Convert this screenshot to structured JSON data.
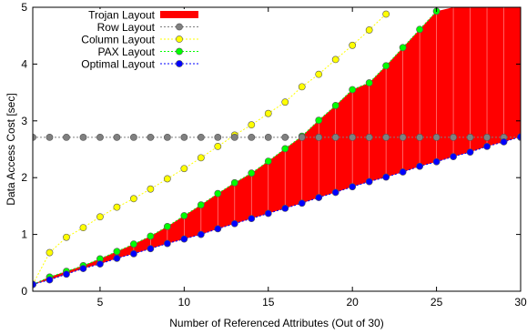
{
  "chart_data": {
    "type": "line",
    "title": "",
    "xlabel": "Number of Referenced Attributes (Out of 30)",
    "ylabel": "Data Access Cost [sec]",
    "xlim": [
      1,
      30
    ],
    "ylim": [
      0,
      5
    ],
    "xticks": [
      5,
      10,
      15,
      20,
      25,
      30
    ],
    "yticks": [
      0,
      1,
      2,
      3,
      4,
      5
    ],
    "grid": false,
    "legend": "top-left",
    "x": [
      1,
      2,
      3,
      4,
      5,
      6,
      7,
      8,
      9,
      10,
      11,
      12,
      13,
      14,
      15,
      16,
      17,
      18,
      19,
      20,
      21,
      22,
      23,
      24,
      25,
      26,
      27,
      28,
      29,
      30
    ],
    "series": [
      {
        "name": "Row Layout",
        "kind": "line",
        "color": "#808080",
        "values": [
          2.71,
          2.71,
          2.71,
          2.71,
          2.71,
          2.71,
          2.71,
          2.71,
          2.71,
          2.71,
          2.71,
          2.71,
          2.71,
          2.71,
          2.71,
          2.71,
          2.71,
          2.71,
          2.71,
          2.71,
          2.71,
          2.71,
          2.71,
          2.71,
          2.71,
          2.71,
          2.71,
          2.71,
          2.71,
          2.71
        ]
      },
      {
        "name": "Column Layout",
        "kind": "line",
        "color": "#ffff00",
        "values": [
          0.12,
          0.68,
          0.95,
          1.12,
          1.31,
          1.48,
          1.63,
          1.8,
          1.98,
          2.16,
          2.35,
          2.55,
          2.75,
          2.93,
          3.13,
          3.33,
          3.6,
          3.82,
          4.08,
          4.33,
          4.6,
          4.88,
          null,
          null,
          null,
          null,
          null,
          null,
          null,
          null
        ]
      },
      {
        "name": "PAX Layout",
        "kind": "line",
        "color": "#00ff00",
        "values": [
          0.12,
          0.25,
          0.35,
          0.45,
          0.57,
          0.7,
          0.83,
          0.97,
          1.14,
          1.33,
          1.52,
          1.72,
          1.91,
          2.08,
          2.29,
          2.51,
          2.73,
          3.01,
          3.27,
          3.55,
          3.67,
          3.97,
          4.29,
          4.61,
          4.93,
          null,
          null,
          null,
          null,
          null
        ]
      },
      {
        "name": "Optimal Layout",
        "kind": "line",
        "color": "#0000ff",
        "values": [
          0.12,
          0.2,
          0.3,
          0.4,
          0.48,
          0.58,
          0.66,
          0.75,
          0.84,
          0.92,
          1.0,
          1.1,
          1.19,
          1.28,
          1.37,
          1.46,
          1.55,
          1.65,
          1.74,
          1.84,
          1.93,
          2.01,
          2.1,
          2.2,
          2.28,
          2.37,
          2.45,
          2.55,
          2.63,
          2.72
        ]
      },
      {
        "name": "Trojan Layout",
        "kind": "area-between",
        "color": "#ff0000",
        "lower": "Optimal Layout",
        "upper": [
          0.12,
          0.25,
          0.35,
          0.45,
          0.57,
          0.7,
          0.83,
          0.97,
          1.14,
          1.33,
          1.52,
          1.72,
          1.91,
          2.08,
          2.29,
          2.51,
          2.73,
          3.01,
          3.27,
          3.55,
          3.67,
          3.97,
          4.29,
          4.61,
          4.93,
          5.0,
          5.0,
          5.0,
          5.0,
          5.0
        ]
      }
    ],
    "legend_order": [
      "Trojan Layout",
      "Row Layout",
      "Column Layout",
      "PAX Layout",
      "Optimal Layout"
    ]
  }
}
